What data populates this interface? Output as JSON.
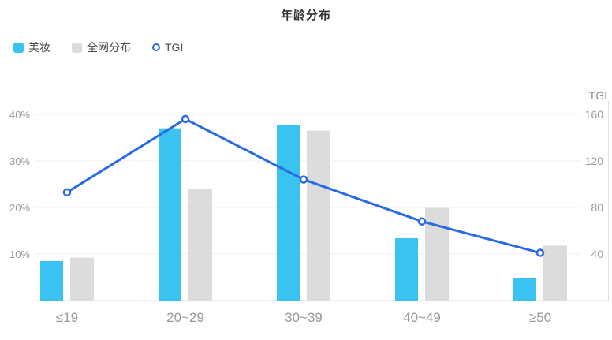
{
  "title": "年龄分布",
  "legend": {
    "items": [
      {
        "label": "美妆",
        "icon": "square-swatch-icon",
        "color": "#3AC2F0"
      },
      {
        "label": "全网分布",
        "icon": "square-swatch-icon",
        "color": "#DCDCDC"
      },
      {
        "label": "TGI",
        "icon": "hollow-circle-icon",
        "color": "#2A6BE2"
      }
    ]
  },
  "colors": {
    "beauty_bar": "#3AC2F0",
    "network_bar": "#DCDCDC",
    "tgi_line": "#2A6BE2",
    "grid_line": "#EFEFEF",
    "axis_line": "#E0E0E0",
    "axis_label": "#9B9B9B",
    "title_text": "#333333",
    "legend_text": "#4A4A4A"
  },
  "chart_data": {
    "type": "bar",
    "subtype": "grouped-bars-with-line-dual-axis",
    "title": "年龄分布",
    "categories": [
      "≤19",
      "20~29",
      "30~39",
      "40~49",
      "≥50"
    ],
    "series": [
      {
        "name": "美妆",
        "type": "bar",
        "axis": "left",
        "color": "#3AC2F0",
        "values": [
          8.5,
          37,
          37.8,
          13.4,
          4.8
        ]
      },
      {
        "name": "全网分布",
        "type": "bar",
        "axis": "left",
        "color": "#DCDCDC",
        "values": [
          9.2,
          24,
          36.5,
          19.9,
          11.8
        ]
      },
      {
        "name": "TGI",
        "type": "line",
        "axis": "right",
        "color": "#2A6BE2",
        "values": [
          93,
          156,
          104,
          68,
          41
        ]
      }
    ],
    "left_axis": {
      "unit": "%",
      "min": 0,
      "max": 40,
      "ticks": [
        10,
        20,
        30,
        40
      ],
      "tick_labels": [
        "10%",
        "20%",
        "30%",
        "40%"
      ]
    },
    "right_axis": {
      "name": "TGI",
      "min": 0,
      "max": 160,
      "ticks": [
        40,
        80,
        120,
        160
      ],
      "tick_labels": [
        "40",
        "80",
        "120",
        "160"
      ]
    },
    "grid": true,
    "legend_position": "top-left"
  }
}
